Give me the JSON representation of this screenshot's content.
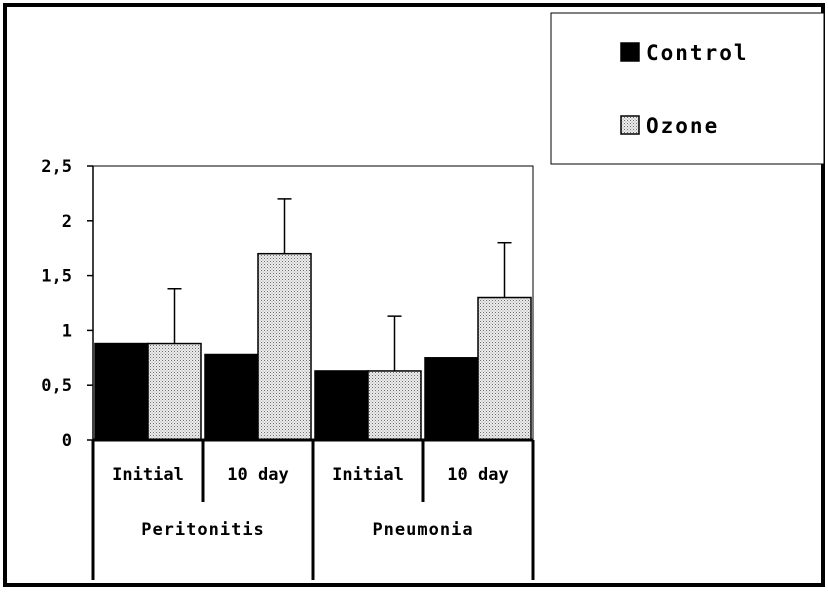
{
  "chart_data": {
    "type": "bar",
    "title": "",
    "xlabel": "",
    "ylabel": "",
    "ylim": [
      0,
      2.5
    ],
    "y_ticks": [
      "0",
      "0,5",
      "1",
      "1,5",
      "2",
      "2,5"
    ],
    "y_tick_values": [
      0,
      0.5,
      1,
      1.5,
      2,
      2.5
    ],
    "categories": [
      "Initial",
      "10 day",
      "Initial",
      "10 day"
    ],
    "groups": [
      {
        "label": "Peritonitis",
        "categories": [
          "Initial",
          "10 day"
        ]
      },
      {
        "label": "Pneumonia",
        "categories": [
          "Initial",
          "10 day"
        ]
      }
    ],
    "series": [
      {
        "name": "Control",
        "values": [
          0.88,
          0.78,
          0.63,
          0.75
        ],
        "color": "#000000",
        "pattern": "solid"
      },
      {
        "name": "Ozone",
        "values": [
          0.88,
          1.7,
          0.63,
          1.3
        ],
        "error": [
          0.5,
          0.5,
          0.5,
          0.5
        ],
        "color": "#d9d9d9",
        "pattern": "dotted"
      }
    ],
    "legend_position": "top-right",
    "grid": false
  }
}
